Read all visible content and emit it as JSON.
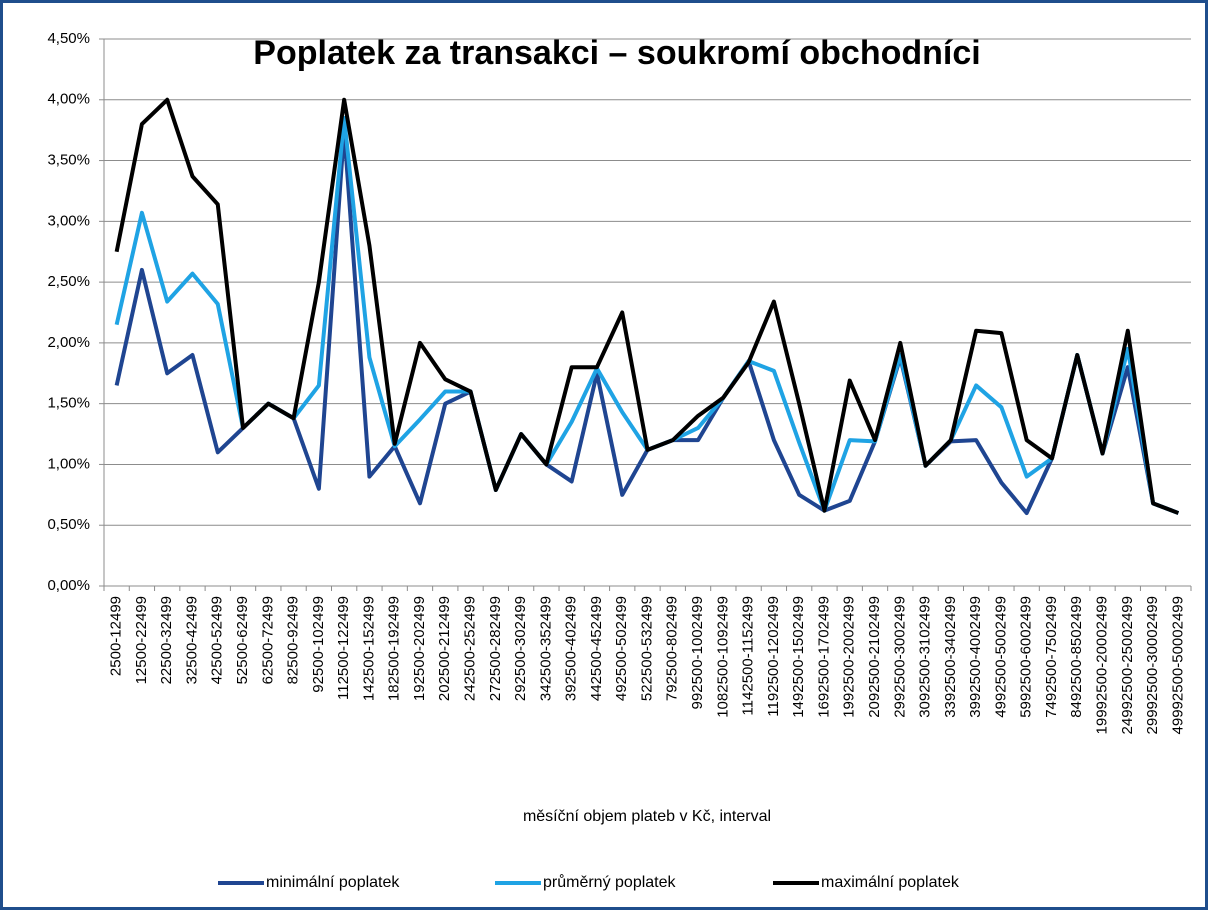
{
  "chart_data": {
    "type": "line",
    "title": "Poplatek za transakci – soukromí obchodníci",
    "x_label": "měsíční objem plateb v Kč, interval",
    "categories": [
      "2500-12499",
      "12500-22499",
      "22500-32499",
      "32500-42499",
      "42500-52499",
      "52500-62499",
      "62500-72499",
      "82500-92499",
      "92500-102499",
      "112500-122499",
      "142500-152499",
      "182500-192499",
      "192500-202499",
      "202500-212499",
      "242500-252499",
      "272500-282499",
      "292500-302499",
      "342500-352499",
      "392500-402499",
      "442500-452499",
      "492500-502499",
      "522500-532499",
      "792500-802499",
      "992500-1002499",
      "1082500-1092499",
      "1142500-1152499",
      "1192500-1202499",
      "1492500-1502499",
      "1692500-1702499",
      "1992500-2002499",
      "2092500-2102499",
      "2992500-3002499",
      "3092500-3102499",
      "3392500-3402499",
      "3992500-4002499",
      "4992500-5002499",
      "5992500-6002499",
      "7492500-7502499",
      "8492500-8502499",
      "19992500-20002499",
      "24992500-25002499",
      "29992500-30002499",
      "49992500-50002499"
    ],
    "series": [
      {
        "name": "minimální poplatek",
        "color": "#1f4591",
        "values": [
          1.65,
          2.6,
          1.75,
          1.9,
          1.1,
          1.3,
          1.5,
          1.38,
          0.8,
          3.75,
          0.9,
          1.15,
          0.68,
          1.5,
          1.6,
          0.79,
          1.25,
          1.0,
          0.86,
          1.75,
          0.75,
          1.12,
          1.2,
          1.2,
          1.55,
          1.85,
          1.2,
          0.75,
          0.62,
          0.7,
          1.19,
          1.88,
          0.99,
          1.19,
          1.2,
          0.85,
          0.6,
          1.05,
          1.9,
          1.09,
          1.8,
          0.68,
          0.6
        ]
      },
      {
        "name": "průměrný poplatek",
        "color": "#1fa3e4",
        "values": [
          2.15,
          3.07,
          2.34,
          2.57,
          2.32,
          1.3,
          1.5,
          1.38,
          1.65,
          3.85,
          1.88,
          1.15,
          1.37,
          1.6,
          1.6,
          0.79,
          1.25,
          1.0,
          1.35,
          1.79,
          1.43,
          1.12,
          1.2,
          1.3,
          1.55,
          1.85,
          1.77,
          1.18,
          0.62,
          1.2,
          1.19,
          1.9,
          0.99,
          1.2,
          1.65,
          1.47,
          0.9,
          1.05,
          1.9,
          1.09,
          1.95,
          0.68,
          0.6
        ]
      },
      {
        "name": "maximální poplatek",
        "color": "#000000",
        "values": [
          2.75,
          3.8,
          4.0,
          3.37,
          3.14,
          1.3,
          1.5,
          1.38,
          2.5,
          4.0,
          2.8,
          1.17,
          2.0,
          1.7,
          1.6,
          0.79,
          1.25,
          1.0,
          1.8,
          1.8,
          2.25,
          1.12,
          1.2,
          1.4,
          1.55,
          1.84,
          2.34,
          1.5,
          0.62,
          1.69,
          1.2,
          2.0,
          0.99,
          1.2,
          2.1,
          2.08,
          1.2,
          1.05,
          1.9,
          1.09,
          2.1,
          0.68,
          0.6
        ]
      }
    ],
    "ylim": [
      0,
      4.5
    ],
    "yticks": [
      {
        "value": 0,
        "label": "0,00%"
      },
      {
        "value": 0.5,
        "label": "0,50%"
      },
      {
        "value": 1,
        "label": "1,00%"
      },
      {
        "value": 1.5,
        "label": "1,50%"
      },
      {
        "value": 2,
        "label": "2,00%"
      },
      {
        "value": 2.5,
        "label": "2,50%"
      },
      {
        "value": 3,
        "label": "3,00%"
      },
      {
        "value": 3.5,
        "label": "3,50%"
      },
      {
        "value": 4,
        "label": "4,00%"
      },
      {
        "value": 4.5,
        "label": "4,50%"
      }
    ],
    "grid": true,
    "legend": "bottom"
  }
}
